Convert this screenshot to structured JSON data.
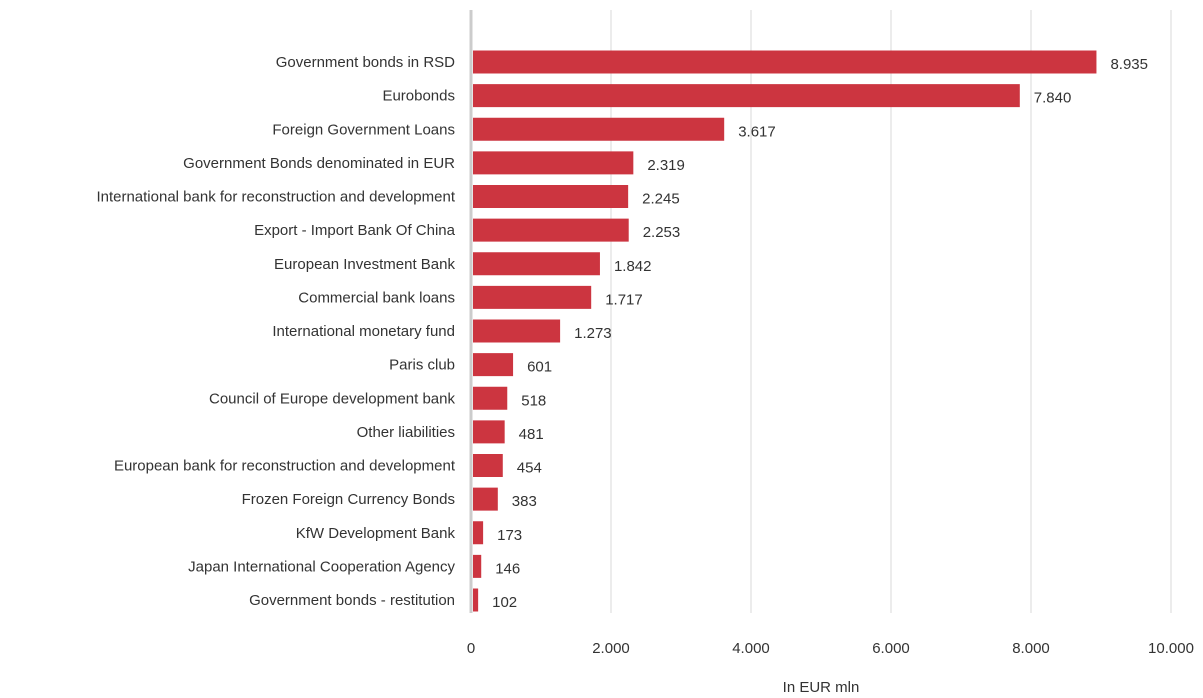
{
  "chart_data": {
    "type": "bar",
    "orientation": "horizontal",
    "categories": [
      "Government bonds in RSD",
      "Eurobonds",
      "Foreign Government Loans",
      "Government Bonds denominated in EUR",
      "International bank for reconstruction and development",
      "Export - Import Bank Of China ",
      "European Investment Bank",
      "Commercial bank loans",
      "International monetary fund",
      "Paris club",
      "Council of Europe development bank",
      "Other liabilities",
      "European bank for reconstruction and development",
      "Frozen Foreign Currency Bonds",
      "KfW Development Bank",
      "Japan International Cooperation Agency",
      "Government bonds - restitution"
    ],
    "values": [
      8935,
      7840,
      3617,
      2319,
      2245,
      2253,
      1842,
      1717,
      1273,
      601,
      518,
      481,
      454,
      383,
      173,
      146,
      102
    ],
    "value_labels": [
      "8.935",
      "7.840",
      "3.617",
      "2.319",
      "2.245",
      "2.253",
      "1.842",
      "1.717",
      "1.273",
      "601",
      "518",
      "481",
      "454",
      "383",
      "173",
      "146",
      "102"
    ],
    "xlim": [
      0,
      10000
    ],
    "xticks": [
      0,
      2000,
      4000,
      6000,
      8000,
      10000
    ],
    "xtick_labels": [
      "0",
      "2.000",
      "4.000",
      "6.000",
      "8.000",
      "10.000"
    ],
    "xlabel": "In EUR mln",
    "ylabel": "",
    "title": "",
    "grid": "vertical",
    "legend": "none",
    "bar_color": "#cc3540",
    "grid_color": "#d9d9d9"
  }
}
